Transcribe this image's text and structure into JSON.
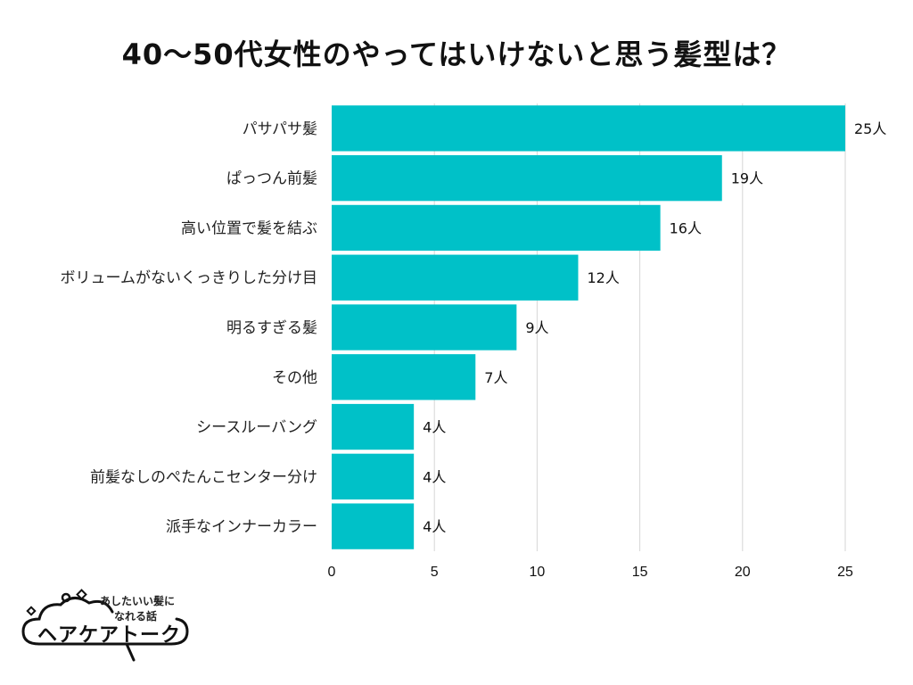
{
  "chart_data": {
    "type": "bar",
    "orientation": "horizontal",
    "title": "40〜50代女性のやってはいけないと思う髪型は？",
    "categories": [
      "パサパサ髪",
      "ぱっつん前髪",
      "高い位置で髪を結ぶ",
      "ボリュームがないくっきりした分け目",
      "明るすぎる髪",
      "その他",
      "シースルーバング",
      "前髪なしのぺたんこセンター分け",
      "派手なインナーカラー"
    ],
    "values": [
      25,
      19,
      16,
      12,
      9,
      7,
      4,
      4,
      4
    ],
    "value_labels": [
      "25人",
      "19人",
      "16人",
      "12人",
      "9人",
      "7人",
      "4人",
      "4人",
      "4人"
    ],
    "xlim": [
      0,
      25
    ],
    "xticks": [
      "0",
      "5",
      "10",
      "15",
      "20",
      "25"
    ],
    "xlabel": "",
    "ylabel": "",
    "grid": true,
    "bar_color": "#00c1c8"
  },
  "logo": {
    "tagline_line1": "あしたいい髪に",
    "tagline_line2": "なれる話",
    "name": "ヘアケアトーク"
  }
}
